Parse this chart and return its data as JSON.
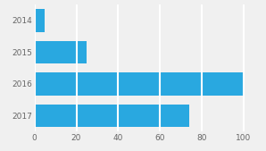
{
  "categories": [
    "2014",
    "2015",
    "2016",
    "2017"
  ],
  "values": [
    5,
    25,
    100,
    74
  ],
  "bar_color": "#29a8e0",
  "background_color": "#f0f0f0",
  "xlim": [
    0,
    107
  ],
  "xticks": [
    0,
    20,
    40,
    60,
    80,
    100
  ],
  "bar_height": 0.72,
  "grid_color": "#ffffff",
  "tick_label_color": "#666666",
  "tick_fontsize": 6.5
}
